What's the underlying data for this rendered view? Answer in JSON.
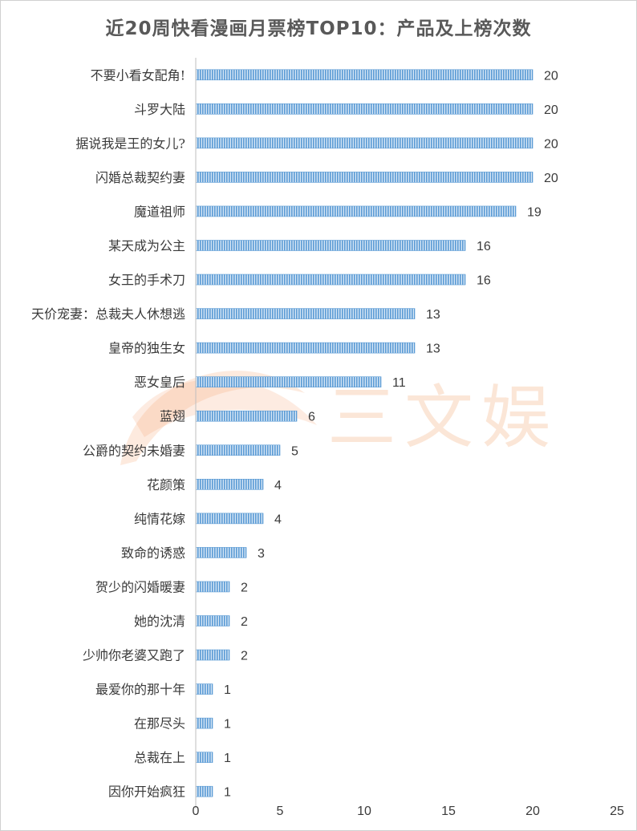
{
  "chart_data": {
    "type": "bar",
    "orientation": "horizontal",
    "title": "近20周快看漫画月票榜TOP10：产品及上榜次数",
    "categories": [
      "不要小看女配角!",
      "斗罗大陆",
      "据说我是王的女儿?",
      "闪婚总裁契约妻",
      "魔道祖师",
      "某天成为公主",
      "女王的手术刀",
      "天价宠妻：总裁夫人休想逃",
      "皇帝的独生女",
      "恶女皇后",
      "蓝翅",
      "公爵的契约未婚妻",
      "花颜策",
      "纯情花嫁",
      "致命的诱惑",
      "贺少的闪婚暖妻",
      "她的沈清",
      "少帅你老婆又跑了",
      "最爱你的那十年",
      "在那尽头",
      "总裁在上",
      "因你开始疯狂"
    ],
    "values": [
      20,
      20,
      20,
      20,
      19,
      16,
      16,
      13,
      13,
      11,
      6,
      5,
      4,
      4,
      3,
      2,
      2,
      2,
      1,
      1,
      1,
      1
    ],
    "xlim": [
      0,
      25
    ],
    "xticks": [
      0,
      5,
      10,
      15,
      20,
      25
    ],
    "grid": false,
    "bar_color": "#5b9bd5",
    "watermark": "三文娱"
  }
}
